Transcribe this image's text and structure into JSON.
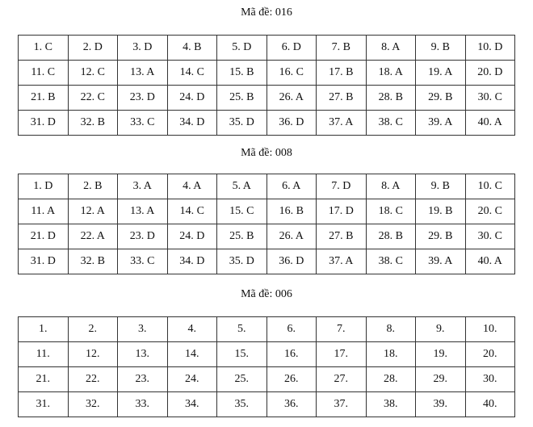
{
  "sections": [
    {
      "title": "Mã đề: 016",
      "rows": [
        [
          "1. C",
          "2. D",
          "3. D",
          "4. B",
          "5. D",
          "6. D",
          "7. B",
          "8. A",
          "9. B",
          "10. D"
        ],
        [
          "11. C",
          "12. C",
          "13. A",
          "14. C",
          "15. B",
          "16. C",
          "17. B",
          "18. A",
          "19. A",
          "20. D"
        ],
        [
          "21. B",
          "22. C",
          "23. D",
          "24. D",
          "25. B",
          "26. A",
          "27. B",
          "28. B",
          "29. B",
          "30. C"
        ],
        [
          "31. D",
          "32. B",
          "33. C",
          "34. D",
          "35. D",
          "36. D",
          "37. A",
          "38. C",
          "39. A",
          "40. A"
        ]
      ]
    },
    {
      "title": "Mã đề: 008",
      "rows": [
        [
          "1. D",
          "2. B",
          "3. A",
          "4. A",
          "5. A",
          "6. A",
          "7. D",
          "8. A",
          "9. B",
          "10. C"
        ],
        [
          "11. A",
          "12. A",
          "13. A",
          "14. C",
          "15. C",
          "16. B",
          "17. D",
          "18. C",
          "19. B",
          "20. C"
        ],
        [
          "21. D",
          "22. A",
          "23. D",
          "24. D",
          "25. B",
          "26. A",
          "27. B",
          "28. B",
          "29. B",
          "30. C"
        ],
        [
          "31. D",
          "32. B",
          "33. C",
          "34. D",
          "35. D",
          "36. D",
          "37. A",
          "38. C",
          "39. A",
          "40. A"
        ]
      ]
    },
    {
      "title": "Mã đề: 006",
      "rows": [
        [
          "1.",
          "2.",
          "3.",
          "4.",
          "5.",
          "6.",
          "7.",
          "8.",
          "9.",
          "10."
        ],
        [
          "11.",
          "12.",
          "13.",
          "14.",
          "15.",
          "16.",
          "17.",
          "18.",
          "19.",
          "20."
        ],
        [
          "21.",
          "22.",
          "23.",
          "24.",
          "25.",
          "26.",
          "27.",
          "28.",
          "29.",
          "30."
        ],
        [
          "31.",
          "32.",
          "33.",
          "34.",
          "35.",
          "36.",
          "37.",
          "38.",
          "39.",
          "40."
        ]
      ]
    }
  ]
}
